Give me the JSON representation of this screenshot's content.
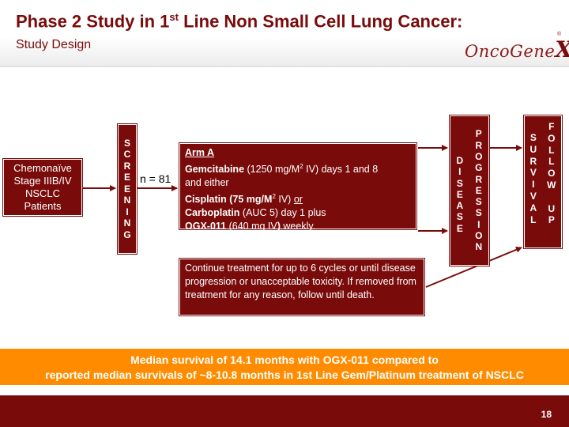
{
  "slide": {
    "title_main": "Phase 2 Study in 1",
    "title_sup": "st",
    "title_rest": " Line Non Small Cell Lung Cancer:",
    "subtitle": "Study Design",
    "logo_prefix": "OncoGene",
    "logo_x": "X",
    "logo_mark": "®",
    "page_number": "18"
  },
  "colors": {
    "primary": "#7a0b0b",
    "banner": "#ff8c00"
  },
  "flow": {
    "patients": {
      "line1": "Chemonaïve",
      "line2": "Stage IIIB/IV",
      "line3": "NSCLC",
      "line4": "Patients"
    },
    "screening_letters": [
      "S",
      "C",
      "R",
      "E",
      "E",
      "N",
      "I",
      "N",
      "G"
    ],
    "n_label": "n = 81",
    "arm": {
      "heading": "Arm A",
      "drug1": "Gemcitabine",
      "drug1_dose_a": " (1250 mg/M",
      "drug1_sup": "2",
      "drug1_dose_b": " IV) days 1 and 8",
      "either": "and either",
      "drug2": "Cisplatin (75 mg/M",
      "drug2_sup": "2",
      "drug2_end": " IV) ",
      "or": "or",
      "drug3": "Carboplatin",
      "drug3_dose": " (AUC 5) day 1 plus",
      "drug4": "OGX-011",
      "drug4_dose": " (640 mg IV",
      "drug4_paren": ")",
      "drug4_end": " weekly."
    },
    "continue_text": "Continue treatment for up to 6 cycles or until disease progression or unacceptable toxicity.  If removed from treatment for any reason, follow until death.",
    "progression": {
      "disease_letters": [
        "D",
        "I",
        "S",
        "E",
        "A",
        "S",
        "E"
      ],
      "progression_letters": [
        "P",
        "R",
        "O",
        "G",
        "R",
        "E",
        "S",
        "S",
        "I",
        "O",
        "N"
      ]
    },
    "survival": {
      "survival_letters": [
        "S",
        "U",
        "R",
        "V",
        "I",
        "V",
        "A",
        "L"
      ],
      "follow_letters": [
        "F",
        "O",
        "L",
        "L",
        "O",
        "W",
        "",
        "U",
        "P"
      ]
    }
  },
  "banner": {
    "line1": "Median survival of  14.1 months with OGX-011 compared to",
    "line2": "reported median survivals of ~8-10.8 months in 1st Line Gem/Platinum treatment of NSCLC"
  }
}
